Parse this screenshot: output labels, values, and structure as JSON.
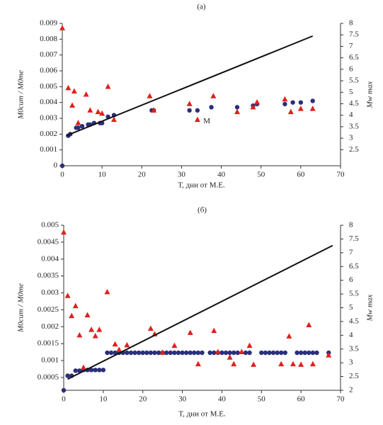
{
  "chart_data": [
    {
      "type": "scatter",
      "title": "(а)",
      "x_label": "T, дни от М.Е.",
      "y_label": "M0cum / M0me",
      "y2_label": "Mw max",
      "xlim": [
        0,
        70
      ],
      "xticks": [
        0,
        10,
        20,
        30,
        40,
        50,
        60,
        70
      ],
      "ylim": [
        0,
        0.009
      ],
      "yticks": [
        0,
        0.001,
        0.002,
        0.003,
        0.004,
        0.005,
        0.006,
        0.007,
        0.008,
        0.009
      ],
      "y2lim": [
        1.8,
        8
      ],
      "y2ticks": [
        2.5,
        3,
        3.5,
        4,
        4.5,
        5,
        5.5,
        6,
        6.5,
        7,
        7.5,
        8
      ],
      "annotations": [
        {
          "text": "M",
          "x": 35.5,
          "y": 0.0028
        }
      ],
      "series": [
        {
          "marker": "circle",
          "color": "#2b2f7a",
          "x": [
            0,
            1.5,
            2,
            3.5,
            4,
            5,
            6.5,
            7,
            8,
            9.5,
            10,
            11.5,
            13,
            22.5,
            23,
            32,
            34,
            37.5,
            44,
            48,
            49,
            56,
            58,
            60,
            63
          ],
          "values": [
            0,
            0.0019,
            0.002,
            0.0024,
            0.0024,
            0.0025,
            0.0026,
            0.0026,
            0.0027,
            0.0027,
            0.0027,
            0.0031,
            0.0032,
            0.0035,
            0.0035,
            0.0035,
            0.0035,
            0.0037,
            0.0037,
            0.0038,
            0.0039,
            0.0039,
            0.004,
            0.004,
            0.0041
          ]
        },
        {
          "marker": "triangle",
          "color": "#e0201b",
          "axis": "y2",
          "x": [
            0,
            1.5,
            2.5,
            3,
            4,
            6,
            7,
            9,
            10,
            11.5,
            13,
            22,
            23,
            32,
            34,
            38,
            44,
            48,
            49,
            56,
            57.5,
            60,
            63
          ],
          "values": [
            7.79,
            5.18,
            4.42,
            5.04,
            3.66,
            4.9,
            4.21,
            4.14,
            4.07,
            5.24,
            3.8,
            4.83,
            4.21,
            4.49,
            3.8,
            4.83,
            4.14,
            4.35,
            4.56,
            4.69,
            4.14,
            4.28,
            4.28
          ]
        },
        {
          "marker": "line",
          "color": "#111111",
          "x": [
            1,
            63
          ],
          "values": [
            0.0019,
            0.0082
          ]
        }
      ]
    },
    {
      "type": "scatter",
      "title": "(б)",
      "x_label": "T, дни от М.Е.",
      "y_label": "M0cum / M0me",
      "y2_label": "Mw max",
      "xlim": [
        0,
        70
      ],
      "xticks": [
        0,
        10,
        20,
        30,
        40,
        50,
        60,
        70
      ],
      "ylim": [
        0.00012,
        0.005
      ],
      "yticks": [
        0.0005,
        0.001,
        0.0015,
        0.002,
        0.0025,
        0.003,
        0.0035,
        0.004,
        0.0045,
        0.005
      ],
      "y2lim": [
        2,
        8
      ],
      "y2ticks": [
        2,
        2.5,
        3,
        3.5,
        4,
        4.5,
        5,
        5.5,
        6,
        6.5,
        7,
        7.5,
        8
      ],
      "series": [
        {
          "marker": "circle",
          "color": "#2b2f7a",
          "x": [
            0,
            1,
            2,
            3,
            4,
            5,
            6,
            7,
            8,
            9,
            10,
            11,
            12,
            13,
            14,
            15,
            16,
            17,
            18,
            19,
            20,
            21,
            22,
            23,
            24,
            25,
            26,
            27,
            28,
            29,
            30,
            31,
            32,
            33,
            34,
            35,
            37,
            38,
            39,
            40,
            41,
            42,
            43,
            44,
            46,
            47,
            50,
            51,
            52,
            53,
            54,
            55,
            56,
            59,
            60,
            61,
            62,
            63,
            64,
            67
          ],
          "values": [
            0.00012,
            0.00055,
            0.00055,
            0.0007,
            0.0007,
            0.00072,
            0.00072,
            0.00072,
            0.00072,
            0.00072,
            0.00072,
            0.00123,
            0.00123,
            0.00123,
            0.00123,
            0.00123,
            0.00123,
            0.00123,
            0.00123,
            0.00123,
            0.00123,
            0.00123,
            0.00123,
            0.00123,
            0.00123,
            0.00123,
            0.00123,
            0.00123,
            0.00123,
            0.00123,
            0.00123,
            0.00123,
            0.00123,
            0.00123,
            0.00123,
            0.00123,
            0.00123,
            0.00123,
            0.00123,
            0.00123,
            0.00123,
            0.00123,
            0.00123,
            0.00123,
            0.00123,
            0.00123,
            0.00123,
            0.00123,
            0.00123,
            0.00123,
            0.00123,
            0.00123,
            0.00123,
            0.00123,
            0.00123,
            0.00123,
            0.00123,
            0.00123,
            0.00123,
            0.00123
          ]
        },
        {
          "marker": "triangle",
          "color": "#e0201b",
          "axis": "y2",
          "x": [
            0,
            1,
            2,
            3,
            4,
            5,
            6,
            7,
            8,
            9,
            11,
            13,
            14,
            16,
            22,
            23,
            25,
            28,
            32,
            34,
            38,
            39,
            42,
            43,
            45,
            47,
            48,
            55,
            57,
            58,
            60,
            62,
            63,
            67
          ],
          "values": [
            7.74,
            5.43,
            4.7,
            5.06,
            4.0,
            2.82,
            4.73,
            4.2,
            3.97,
            4.2,
            5.57,
            3.67,
            3.47,
            3.64,
            4.24,
            4.04,
            3.37,
            3.62,
            4.09,
            2.95,
            4.16,
            3.39,
            3.19,
            2.95,
            3.39,
            3.62,
            2.93,
            2.95,
            3.96,
            2.95,
            2.93,
            4.37,
            2.95,
            3.27
          ]
        },
        {
          "marker": "line",
          "color": "#111111",
          "x": [
            1,
            68
          ],
          "values": [
            0.00045,
            0.0044
          ]
        }
      ]
    }
  ]
}
